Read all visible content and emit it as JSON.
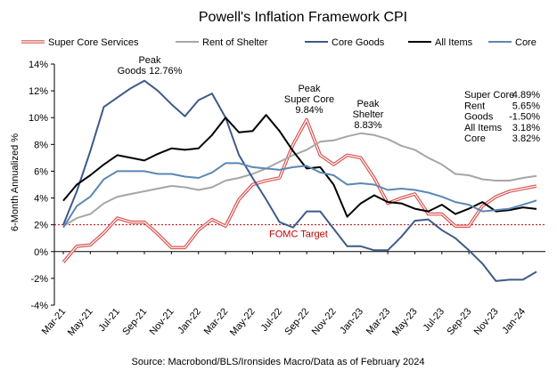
{
  "chart_data": {
    "type": "line",
    "title": "Powell's Inflation Framework CPI",
    "ylabel": "6-Month Annualized %",
    "xlabel": "",
    "source": "Source: Macrobond/BLS/Ironsides Macro/Data as of February 2024",
    "ylim": [
      -4,
      14
    ],
    "y_ticks": [
      "14%",
      "12%",
      "10%",
      "8%",
      "6%",
      "4%",
      "2%",
      "0%",
      "-2%",
      "-4%"
    ],
    "x_tick_labels": [
      "Mar-21",
      "May-21",
      "Jul-21",
      "Sep-21",
      "Nov-21",
      "Jan-22",
      "Mar-22",
      "May-22",
      "Jul-22",
      "Sep-22",
      "Nov-22",
      "Jan-23",
      "Mar-23",
      "May-23",
      "Jul-23",
      "Sep-23",
      "Nov-23",
      "Jan-24"
    ],
    "x": [
      "Mar-21",
      "Apr-21",
      "May-21",
      "Jun-21",
      "Jul-21",
      "Aug-21",
      "Sep-21",
      "Oct-21",
      "Nov-21",
      "Dec-21",
      "Jan-22",
      "Feb-22",
      "Mar-22",
      "Apr-22",
      "May-22",
      "Jun-22",
      "Jul-22",
      "Aug-22",
      "Sep-22",
      "Oct-22",
      "Nov-22",
      "Dec-22",
      "Jan-23",
      "Feb-23",
      "Mar-23",
      "Apr-23",
      "May-23",
      "Jun-23",
      "Jul-23",
      "Aug-23",
      "Sep-23",
      "Oct-23",
      "Nov-23",
      "Dec-23",
      "Jan-24",
      "Feb-24"
    ],
    "series": [
      {
        "name": "Super Core Services",
        "color": "#d9534f",
        "double": true,
        "values": [
          -0.8,
          0.4,
          0.5,
          1.4,
          2.5,
          2.2,
          2.2,
          1.3,
          0.3,
          0.3,
          1.6,
          2.4,
          1.9,
          3.9,
          5.0,
          5.3,
          5.5,
          8.0,
          9.84,
          7.2,
          6.5,
          7.2,
          7.0,
          5.5,
          3.6,
          4.0,
          4.3,
          2.8,
          2.8,
          1.9,
          1.9,
          3.4,
          4.1,
          4.5,
          4.7,
          4.89
        ]
      },
      {
        "name": "Rent of Shelter",
        "color": "#a6a6a6",
        "double": false,
        "values": [
          1.9,
          2.5,
          2.8,
          3.6,
          4.1,
          4.3,
          4.5,
          4.7,
          4.9,
          4.8,
          4.6,
          4.8,
          5.3,
          5.5,
          5.8,
          6.2,
          6.7,
          7.2,
          7.6,
          8.2,
          8.3,
          8.6,
          8.83,
          8.7,
          8.4,
          7.9,
          7.6,
          7.0,
          6.5,
          5.8,
          5.7,
          5.4,
          5.3,
          5.3,
          5.5,
          5.65
        ]
      },
      {
        "name": "Core Goods",
        "color": "#3e5a8a",
        "double": false,
        "values": [
          2.0,
          4.5,
          7.5,
          10.8,
          11.5,
          12.2,
          12.76,
          12.0,
          11.0,
          10.1,
          11.3,
          11.8,
          10.0,
          7.2,
          5.5,
          3.9,
          2.2,
          1.8,
          3.0,
          3.0,
          1.7,
          0.4,
          0.4,
          0.1,
          0.1,
          1.1,
          2.3,
          2.4,
          1.6,
          1.0,
          0.1,
          -0.9,
          -2.2,
          -2.1,
          -2.1,
          -1.5
        ]
      },
      {
        "name": "All Items",
        "color": "#000000",
        "double": false,
        "values": [
          3.8,
          5.0,
          5.7,
          6.5,
          7.2,
          7.0,
          6.8,
          7.3,
          7.7,
          7.6,
          7.7,
          8.7,
          10.0,
          8.9,
          9.0,
          10.2,
          9.0,
          7.5,
          6.2,
          6.3,
          5.0,
          2.6,
          3.6,
          4.2,
          3.7,
          3.6,
          3.2,
          3.0,
          3.5,
          2.8,
          3.2,
          3.7,
          3.0,
          3.1,
          3.3,
          3.18
        ]
      },
      {
        "name": "Core",
        "color": "#5b87b5",
        "double": false,
        "values": [
          1.8,
          3.4,
          4.1,
          5.4,
          6.0,
          6.0,
          6.0,
          5.8,
          5.8,
          5.6,
          5.5,
          5.9,
          6.6,
          6.6,
          6.3,
          6.2,
          6.1,
          6.3,
          6.4,
          5.9,
          5.7,
          5.0,
          5.1,
          5.0,
          4.6,
          4.7,
          4.6,
          4.4,
          4.1,
          3.7,
          3.5,
          3.0,
          3.1,
          3.2,
          3.5,
          3.82
        ]
      }
    ],
    "reference_line": {
      "value": 2,
      "label": "FOMC Target",
      "color": "#c00000"
    },
    "annotations": [
      {
        "lines": [
          "Peak",
          "Goods 12.76%"
        ],
        "series": "Core Goods",
        "point": "Sep-21"
      },
      {
        "lines": [
          "Peak",
          "Super Core",
          "9.84%"
        ],
        "series": "Super Core Services",
        "point": "Sep-22"
      },
      {
        "lines": [
          "Peak",
          "Shelter",
          "8.83%"
        ],
        "series": "Rent of Shelter",
        "point": "Jan-23"
      }
    ],
    "latest_values": [
      {
        "label": "Super Core",
        "value": "4.89%"
      },
      {
        "label": "Rent",
        "value": "5.65%"
      },
      {
        "label": "Goods",
        "value": "-1.50%"
      },
      {
        "label": "All Items",
        "value": "3.18%"
      },
      {
        "label": "Core",
        "value": "3.82%"
      }
    ],
    "legend": [
      "Super Core Services",
      "Rent of Shelter",
      "Core Goods",
      "All Items",
      "Core"
    ],
    "legend_position": "top",
    "grid": false
  }
}
